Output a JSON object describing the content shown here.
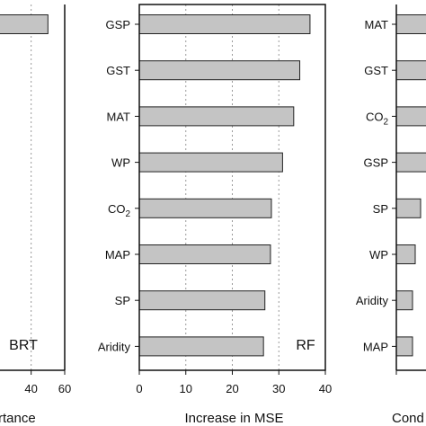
{
  "colors": {
    "bar_fill": "#c4c4c4",
    "bar_stroke": "#222222",
    "gridline": "#9a9a9a",
    "frame": "#111111"
  },
  "chart_data": [
    {
      "type": "bar",
      "orientation": "horizontal",
      "panel_label": "BRT",
      "xlabel": "rtance",
      "xlim": [
        0,
        60
      ],
      "x_ticks": [
        "40",
        "60"
      ],
      "categories": [
        ""
      ],
      "values": [
        50
      ],
      "grid": "vertical dotted"
    },
    {
      "type": "bar",
      "orientation": "horizontal",
      "panel_label": "RF",
      "xlabel": "Increase in MSE",
      "xlim": [
        0,
        40
      ],
      "x_ticks": [
        "0",
        "10",
        "20",
        "30",
        "40"
      ],
      "categories": [
        "GSP",
        "GST",
        "MAT",
        "WP",
        "CO2",
        "MAP",
        "SP",
        "Aridity"
      ],
      "category_labels": [
        {
          "main": "GSP",
          "sub": ""
        },
        {
          "main": "GST",
          "sub": ""
        },
        {
          "main": "MAT",
          "sub": ""
        },
        {
          "main": "WP",
          "sub": ""
        },
        {
          "main": "CO",
          "sub": "2"
        },
        {
          "main": "MAP",
          "sub": ""
        },
        {
          "main": "SP",
          "sub": ""
        },
        {
          "main": "Aridity",
          "sub": ""
        }
      ],
      "values": [
        36.7,
        34.5,
        33.2,
        30.8,
        28.4,
        28.2,
        27.0,
        26.7
      ],
      "grid": "vertical dotted"
    },
    {
      "type": "bar",
      "orientation": "horizontal",
      "panel_label": "",
      "xlabel": "Cond",
      "categories": [
        "MAT",
        "GST",
        "CO2",
        "GSP",
        "SP",
        "WP",
        "Aridity",
        "MAP"
      ],
      "category_labels": [
        {
          "main": "MAT",
          "sub": ""
        },
        {
          "main": "GST",
          "sub": ""
        },
        {
          "main": "CO",
          "sub": "2"
        },
        {
          "main": "GSP",
          "sub": ""
        },
        {
          "main": "SP",
          "sub": ""
        },
        {
          "main": "WP",
          "sub": ""
        },
        {
          "main": "Aridity",
          "sub": ""
        },
        {
          "main": "MAP",
          "sub": ""
        }
      ],
      "values": [
        1.0,
        1.0,
        1.0,
        1.0,
        0.45,
        0.35,
        0.3,
        0.3
      ],
      "grid": "none"
    }
  ]
}
